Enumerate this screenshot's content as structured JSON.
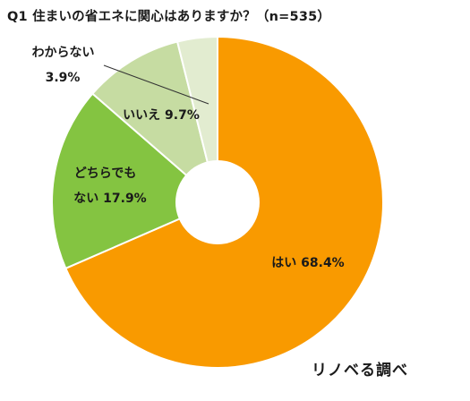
{
  "chart_data": {
    "type": "pie",
    "variant": "donut",
    "title": "Q1 住まいの省エネに関心はありますか？（n=535）",
    "source": "リノベる調べ",
    "slices": [
      {
        "label": "はい",
        "value": 68.4,
        "display": "はい 68.4%",
        "color": "#f99a00"
      },
      {
        "label": "どちらでもない",
        "value": 17.9,
        "display_lines": [
          "どちらでも",
          "ない 17.9%"
        ],
        "color": "#84c441"
      },
      {
        "label": "いいえ",
        "value": 9.7,
        "display": "いいえ 9.7%",
        "color": "#c6dca2"
      },
      {
        "label": "わからない",
        "value": 3.9,
        "display_lines": [
          "わからない",
          "3.9%"
        ],
        "color": "#e2ecd0"
      }
    ],
    "start": "12 o'clock",
    "direction": "clockwise",
    "legend": "none"
  }
}
